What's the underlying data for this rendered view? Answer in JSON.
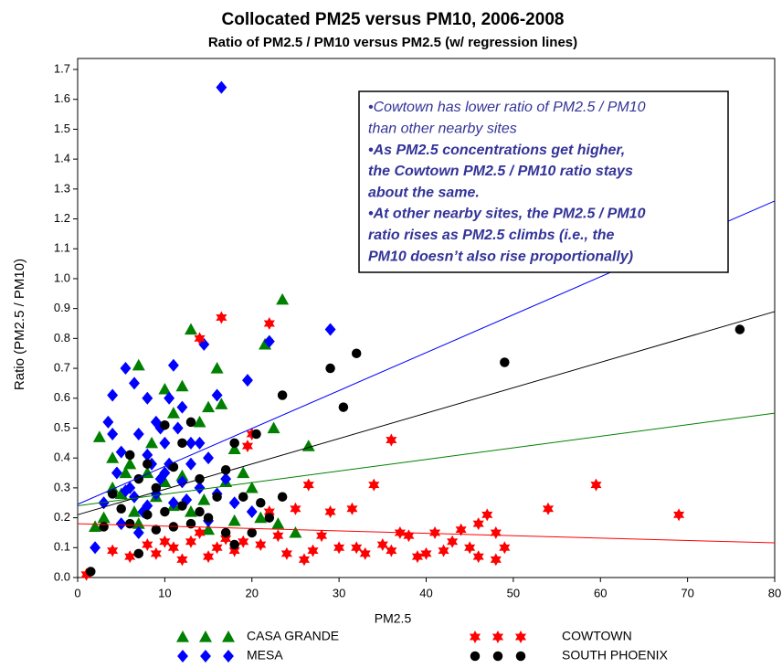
{
  "chart_data": {
    "type": "scatter",
    "title": "Collocated PM25 versus PM10, 2006-2008",
    "subtitle": "Ratio of PM2.5 / PM10 versus PM2.5 (w/ regression lines)",
    "x_label": "PM2.5",
    "y_label": "Ratio (PM2.5 / PM10)",
    "xlim": [
      0,
      80
    ],
    "ylim": [
      0,
      1.7
    ],
    "xticks": [
      0,
      10,
      20,
      30,
      40,
      50,
      60,
      70,
      80
    ],
    "yticks": [
      {
        "value": 0,
        "label": "0.0"
      },
      0.1,
      0.2,
      0.3,
      0.4,
      0.5,
      0.6,
      0.7,
      0.8,
      0.9,
      {
        "value": 1,
        "label": "1.0"
      },
      1.1,
      1.2,
      1.3,
      1.4,
      1.5,
      1.6,
      1.7
    ],
    "series": [
      {
        "name": "CASA GRANDE",
        "color": "#008000",
        "marker": "triangle",
        "x": [
          23.5,
          13,
          21.5,
          7,
          16,
          12,
          10,
          16.5,
          15,
          11,
          14,
          22.5,
          2.5,
          26.5,
          18,
          4,
          6,
          8,
          12,
          17,
          19,
          20,
          5,
          9,
          11,
          13,
          3,
          7,
          15,
          25,
          21,
          10,
          4,
          8.5,
          14.5,
          6.5,
          2,
          18,
          23,
          5.5
        ],
        "values": [
          0.93,
          0.83,
          0.78,
          0.71,
          0.7,
          0.64,
          0.63,
          0.58,
          0.57,
          0.55,
          0.52,
          0.5,
          0.47,
          0.44,
          0.43,
          0.4,
          0.38,
          0.35,
          0.34,
          0.32,
          0.35,
          0.3,
          0.28,
          0.27,
          0.24,
          0.22,
          0.2,
          0.18,
          0.16,
          0.15,
          0.2,
          0.32,
          0.3,
          0.45,
          0.26,
          0.22,
          0.17,
          0.19,
          0.18,
          0.35
        ]
      },
      {
        "name": "MESA",
        "color": "#0000ff",
        "marker": "diamond",
        "x": [
          16.5,
          29,
          22,
          14.5,
          5.5,
          11,
          6.5,
          8,
          16,
          4,
          19.5,
          3.5,
          10.5,
          12,
          9,
          13,
          7,
          5,
          8.5,
          10,
          12,
          6,
          9,
          11,
          14,
          15,
          17,
          7.5,
          4.5,
          3,
          2,
          5,
          13,
          10,
          8,
          11.5,
          6.5,
          9.5,
          12.5,
          16,
          18,
          20,
          15,
          7,
          4,
          9.5,
          14,
          5.5,
          10.5,
          8
        ],
        "values": [
          1.64,
          0.83,
          0.79,
          0.78,
          0.7,
          0.71,
          0.65,
          0.6,
          0.61,
          0.61,
          0.66,
          0.52,
          0.6,
          0.57,
          0.52,
          0.45,
          0.48,
          0.42,
          0.38,
          0.35,
          0.32,
          0.3,
          0.28,
          0.25,
          0.3,
          0.4,
          0.33,
          0.22,
          0.35,
          0.25,
          0.1,
          0.18,
          0.38,
          0.45,
          0.41,
          0.5,
          0.27,
          0.33,
          0.26,
          0.28,
          0.25,
          0.22,
          0.19,
          0.15,
          0.48,
          0.5,
          0.45,
          0.29,
          0.38,
          0.24
        ]
      },
      {
        "name": "COWTOWN",
        "color": "#ff0000",
        "marker": "star",
        "x": [
          1,
          16.5,
          22,
          14,
          36,
          20,
          19.5,
          26.5,
          34,
          59.5,
          69,
          54,
          47,
          31.5,
          29,
          25,
          22,
          46,
          48,
          38,
          41,
          43,
          45,
          49,
          40,
          36,
          33,
          30,
          27,
          24,
          21,
          18,
          15,
          12,
          9,
          6,
          4,
          8,
          11,
          13,
          17,
          19,
          23,
          28,
          32,
          35,
          37,
          42,
          44,
          46,
          48,
          39,
          26,
          10,
          14,
          16
        ],
        "values": [
          0.01,
          0.87,
          0.85,
          0.8,
          0.46,
          0.48,
          0.44,
          0.31,
          0.31,
          0.31,
          0.21,
          0.23,
          0.21,
          0.23,
          0.22,
          0.23,
          0.22,
          0.18,
          0.15,
          0.14,
          0.15,
          0.12,
          0.1,
          0.1,
          0.08,
          0.09,
          0.08,
          0.1,
          0.09,
          0.08,
          0.11,
          0.09,
          0.07,
          0.06,
          0.08,
          0.07,
          0.09,
          0.11,
          0.1,
          0.12,
          0.13,
          0.12,
          0.14,
          0.14,
          0.1,
          0.11,
          0.15,
          0.09,
          0.16,
          0.07,
          0.06,
          0.07,
          0.06,
          0.12,
          0.15,
          0.1
        ]
      },
      {
        "name": "SOUTH PHOENIX",
        "color": "#000000",
        "marker": "circle",
        "x": [
          1.5,
          76,
          32,
          49,
          29,
          23.5,
          30.5,
          13,
          10,
          20.5,
          18,
          12,
          6,
          8,
          17,
          11,
          7,
          14,
          9,
          4,
          16,
          19,
          21,
          23.5,
          5,
          10,
          12,
          8,
          15,
          13,
          6,
          3,
          11,
          9,
          17,
          20,
          18,
          7,
          22,
          14
        ],
        "values": [
          0.02,
          0.83,
          0.75,
          0.72,
          0.7,
          0.61,
          0.57,
          0.52,
          0.51,
          0.48,
          0.45,
          0.45,
          0.41,
          0.38,
          0.36,
          0.37,
          0.33,
          0.33,
          0.3,
          0.28,
          0.27,
          0.27,
          0.25,
          0.27,
          0.23,
          0.22,
          0.24,
          0.21,
          0.2,
          0.18,
          0.18,
          0.17,
          0.17,
          0.16,
          0.15,
          0.15,
          0.11,
          0.08,
          0.2,
          0.22
        ]
      }
    ],
    "regression_lines": [
      {
        "color": "#0000ff",
        "x": [
          0,
          80
        ],
        "y": [
          0.245,
          1.26
        ]
      },
      {
        "color": "#000000",
        "x": [
          0,
          80
        ],
        "y": [
          0.21,
          0.89
        ]
      },
      {
        "color": "#008000",
        "x": [
          0,
          80
        ],
        "y": [
          0.24,
          0.55
        ]
      },
      {
        "color": "#ff0000",
        "x": [
          0,
          80
        ],
        "y": [
          0.18,
          0.116
        ]
      }
    ],
    "annotation": [
      {
        "text": "•Cowtown has lower ratio of PM2.5 / PM10",
        "bold": false
      },
      {
        "text": "than other nearby sites",
        "bold": false
      },
      {
        "text": "•As PM2.5 concentrations get higher,",
        "bold": true
      },
      {
        "text": "the Cowtown PM2.5 / PM10 ratio stays",
        "bold": true
      },
      {
        "text": "about the same.",
        "bold": true
      },
      {
        "text": "•At other nearby sites, the PM2.5 / PM10",
        "bold": true
      },
      {
        "text": "ratio rises as PM2.5 climbs (i.e., the",
        "bold": true
      },
      {
        "text": "PM10 doesn’t also rise proportionally)",
        "bold": true
      }
    ]
  }
}
